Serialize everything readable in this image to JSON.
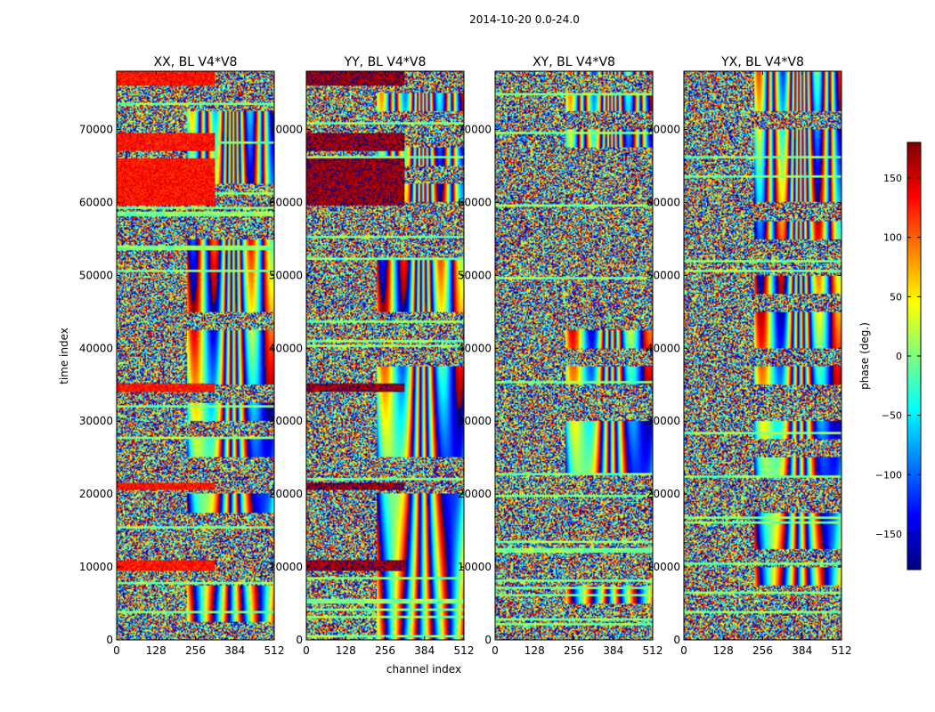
{
  "figure": {
    "suptitle": "2014-10-20 0.0-24.0"
  },
  "chart_data": {
    "type": "heatmap",
    "suptitle": "2014-10-20 0.0-24.0",
    "xlabel": "channel index",
    "ylabel": "time index",
    "xlim": [
      0,
      512
    ],
    "ylim": [
      0,
      78000
    ],
    "xticks": [
      0,
      128,
      256,
      384,
      512
    ],
    "yticks": [
      0,
      10000,
      20000,
      30000,
      40000,
      50000,
      60000,
      70000
    ],
    "xtick_labels": [
      "0",
      "128",
      "256",
      "384",
      "512"
    ],
    "ytick_labels": [
      "0",
      "10000",
      "20000",
      "30000",
      "40000",
      "50000",
      "60000",
      "70000"
    ],
    "panels": [
      {
        "title": "XX, BL V4*V8",
        "pol": "XX",
        "strong_phase": 130
      },
      {
        "title": "YY, BL V4*V8",
        "pol": "YY",
        "strong_phase": 170
      },
      {
        "title": "XY, BL V4*V8",
        "pol": "XY",
        "strong_phase": null
      },
      {
        "title": "YX, BL V4*V8",
        "pol": "YX",
        "strong_phase": null
      }
    ],
    "colorbar": {
      "label": "phase (deg.)",
      "range": [
        -180,
        180
      ],
      "ticks": [
        -150,
        -100,
        -50,
        0,
        50,
        100,
        150
      ],
      "tick_labels": [
        "−150",
        "−100",
        "−50",
        "0",
        "50",
        "100",
        "150"
      ],
      "colormap": "jet"
    },
    "features": {
      "coherent_time_bands": [
        [
          9500,
          11000
        ],
        [
          20500,
          21500
        ],
        [
          34000,
          35200
        ],
        [
          59500,
          66000
        ],
        [
          67000,
          69500
        ],
        [
          76000,
          78000
        ]
      ],
      "coherent_channel_max": 320,
      "fringe_regions_channels": [
        230,
        512
      ]
    }
  }
}
